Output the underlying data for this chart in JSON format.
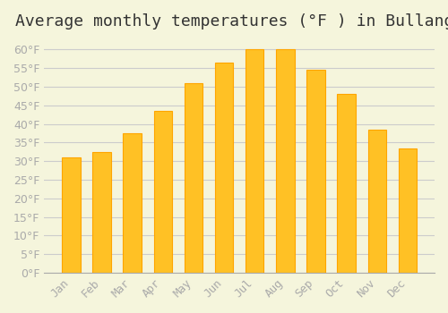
{
  "title": "Average monthly temperatures (°F ) in Bullange",
  "months": [
    "Jan",
    "Feb",
    "Mar",
    "Apr",
    "May",
    "Jun",
    "Jul",
    "Aug",
    "Sep",
    "Oct",
    "Nov",
    "Dec"
  ],
  "values": [
    31,
    32.5,
    37.5,
    43.5,
    51,
    56.5,
    60,
    60,
    54.5,
    48,
    38.5,
    33.5
  ],
  "bar_color": "#FFC125",
  "bar_edge_color": "#FFA500",
  "background_color": "#F5F5DC",
  "grid_color": "#CCCCCC",
  "ylim": [
    0,
    63
  ],
  "yticks": [
    0,
    5,
    10,
    15,
    20,
    25,
    30,
    35,
    40,
    45,
    50,
    55,
    60
  ],
  "title_fontsize": 13,
  "tick_fontsize": 9,
  "tick_label_color": "#AAAAAA"
}
